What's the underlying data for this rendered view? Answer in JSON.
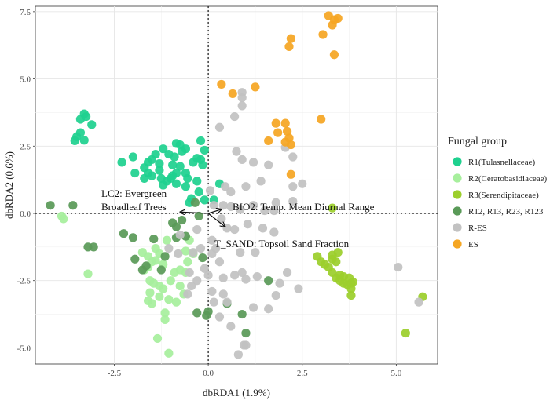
{
  "chart_data": {
    "type": "scatter",
    "title": "",
    "xlabel": "dbRDA1 (1.9%)",
    "ylabel": "dbRDA2 (0.6%)",
    "xlim": [
      -4.6,
      6.1
    ],
    "ylim": [
      -5.6,
      7.7
    ],
    "xticks": [
      -2.5,
      0.0,
      2.5,
      5.0
    ],
    "xtick_labels": [
      "-2.5",
      "0.0",
      "2.5",
      "5.0"
    ],
    "yticks": [
      -5.0,
      -2.5,
      0.0,
      2.5,
      5.0,
      7.5
    ],
    "ytick_labels": [
      "-5.0",
      "-2.5",
      "0.0",
      "2.5",
      "5.0",
      "7.5"
    ],
    "grid": true,
    "legend_position": "right",
    "legend_title": "Fungal group",
    "series": [
      {
        "name": "R1(Tulasnellaceae)",
        "color": "#1fd18f",
        "points": [
          [
            -3.3,
            3.7
          ],
          [
            -3.25,
            3.6
          ],
          [
            -3.4,
            3.5
          ],
          [
            -3.1,
            3.3
          ],
          [
            -3.4,
            3.0
          ],
          [
            -3.5,
            2.85
          ],
          [
            -3.55,
            2.7
          ],
          [
            -3.3,
            2.72
          ],
          [
            -2.3,
            1.9
          ],
          [
            -2.0,
            2.1
          ],
          [
            -1.95,
            1.5
          ],
          [
            -1.7,
            1.3
          ],
          [
            -1.7,
            1.7
          ],
          [
            -1.6,
            1.9
          ],
          [
            -1.5,
            2.0
          ],
          [
            -1.6,
            1.5
          ],
          [
            -1.5,
            1.4
          ],
          [
            -1.3,
            1.85
          ],
          [
            -1.4,
            2.2
          ],
          [
            -1.2,
            2.4
          ],
          [
            -1.05,
            2.2
          ],
          [
            -0.9,
            2.1
          ],
          [
            -0.85,
            2.6
          ],
          [
            -0.75,
            2.55
          ],
          [
            -0.7,
            2.3
          ],
          [
            -0.6,
            2.4
          ],
          [
            -1.3,
            1.6
          ],
          [
            -1.25,
            1.3
          ],
          [
            -1.2,
            1.05
          ],
          [
            -1.1,
            1.2
          ],
          [
            -0.95,
            1.4
          ],
          [
            -0.85,
            1.5
          ],
          [
            -0.85,
            1.1
          ],
          [
            -0.75,
            1.75
          ],
          [
            -0.6,
            1.5
          ],
          [
            -0.55,
            1.3
          ],
          [
            -0.6,
            1.0
          ],
          [
            -0.3,
            2.05
          ],
          [
            -0.2,
            2.0
          ],
          [
            -0.4,
            1.9
          ],
          [
            -0.3,
            1.2
          ],
          [
            -0.15,
            1.8
          ],
          [
            -0.1,
            2.35
          ],
          [
            -0.2,
            2.7
          ],
          [
            -0.25,
            0.8
          ],
          [
            -0.45,
            0.55
          ],
          [
            -0.5,
            0.4
          ],
          [
            -0.1,
            0.5
          ],
          [
            0.15,
            0.5
          ],
          [
            0.3,
            1.1
          ],
          [
            -1.0,
            1.3
          ],
          [
            -0.95,
            1.8
          ]
        ]
      },
      {
        "name": "R2(Ceratobasidiaceae)",
        "color": "#a7ef9d",
        "points": [
          [
            -3.9,
            -0.1
          ],
          [
            -3.85,
            -0.2
          ],
          [
            -3.2,
            -2.25
          ],
          [
            -1.75,
            -1.45
          ],
          [
            -1.6,
            -1.6
          ],
          [
            -1.5,
            -1.8
          ],
          [
            -1.4,
            -1.3
          ],
          [
            -1.3,
            -1.5
          ],
          [
            -1.2,
            -1.9
          ],
          [
            -1.7,
            -2.1
          ],
          [
            -1.6,
            -2.0
          ],
          [
            -1.55,
            -2.5
          ],
          [
            -1.45,
            -2.6
          ],
          [
            -1.3,
            -2.7
          ],
          [
            -1.55,
            -2.95
          ],
          [
            -1.6,
            -3.25
          ],
          [
            -1.5,
            -3.35
          ],
          [
            -1.3,
            -3.1
          ],
          [
            -1.2,
            -2.8
          ],
          [
            -1.0,
            -2.5
          ],
          [
            -0.9,
            -2.2
          ],
          [
            -1.05,
            -3.2
          ],
          [
            -1.15,
            -3.7
          ],
          [
            -1.15,
            -3.95
          ],
          [
            -1.35,
            -4.65
          ],
          [
            -1.05,
            -5.2
          ],
          [
            -0.75,
            -2.7
          ],
          [
            -0.65,
            -3.0
          ],
          [
            -0.85,
            -3.3
          ],
          [
            -0.75,
            -2.1
          ],
          [
            -0.55,
            -1.8
          ],
          [
            -0.6,
            -1.4
          ],
          [
            -0.5,
            -1.0
          ],
          [
            -0.4,
            -1.5
          ],
          [
            -0.6,
            -2.2
          ],
          [
            -1.4,
            -1.75
          ],
          [
            -1.1,
            -1.0
          ]
        ]
      },
      {
        "name": "R3(Serendipitaceae)",
        "color": "#9ccf2c",
        "points": [
          [
            3.3,
            0.2
          ],
          [
            2.9,
            -1.6
          ],
          [
            3.0,
            -1.8
          ],
          [
            3.1,
            -1.9
          ],
          [
            3.2,
            -2.0
          ],
          [
            3.3,
            -2.2
          ],
          [
            3.3,
            -1.7
          ],
          [
            3.4,
            -2.4
          ],
          [
            3.5,
            -2.5
          ],
          [
            3.6,
            -2.6
          ],
          [
            3.7,
            -2.65
          ],
          [
            3.8,
            -2.6
          ],
          [
            3.75,
            -2.4
          ],
          [
            3.6,
            -2.35
          ],
          [
            3.5,
            -2.3
          ],
          [
            3.4,
            -1.8
          ],
          [
            3.45,
            -1.45
          ],
          [
            3.8,
            -2.8
          ],
          [
            3.85,
            -2.55
          ],
          [
            3.8,
            -3.05
          ],
          [
            3.3,
            -1.55
          ],
          [
            5.25,
            -4.45
          ],
          [
            5.7,
            -3.1
          ]
        ]
      },
      {
        "name": "R12, R13, R23, R123",
        "color": "#5a9a58",
        "points": [
          [
            -4.2,
            0.3
          ],
          [
            -3.6,
            0.3
          ],
          [
            -3.2,
            -1.25
          ],
          [
            -3.05,
            -1.25
          ],
          [
            -2.25,
            -0.75
          ],
          [
            -2.0,
            -0.9
          ],
          [
            -1.95,
            -1.7
          ],
          [
            -1.75,
            -2.1
          ],
          [
            -1.65,
            -1.95
          ],
          [
            -1.45,
            -0.95
          ],
          [
            -1.15,
            -1.6
          ],
          [
            -1.25,
            -2.1
          ],
          [
            -0.95,
            -0.35
          ],
          [
            -0.85,
            -0.5
          ],
          [
            -0.7,
            -0.25
          ],
          [
            -0.85,
            -0.9
          ],
          [
            -0.6,
            -0.85
          ],
          [
            -0.25,
            -0.1
          ],
          [
            -0.15,
            -1.65
          ],
          [
            -0.3,
            -3.7
          ],
          [
            0.0,
            -3.65
          ],
          [
            -0.05,
            -3.8
          ],
          [
            0.5,
            -3.35
          ],
          [
            0.9,
            -3.75
          ],
          [
            1.0,
            -4.45
          ],
          [
            1.6,
            -2.5
          ],
          [
            -0.35,
            0.4
          ]
        ]
      },
      {
        "name": "R-ES",
        "color": "#c2c2c2",
        "points": [
          [
            0.9,
            4.5
          ],
          [
            0.9,
            4.3
          ],
          [
            0.9,
            4.0
          ],
          [
            0.7,
            3.6
          ],
          [
            0.3,
            3.2
          ],
          [
            0.75,
            2.3
          ],
          [
            0.9,
            2.0
          ],
          [
            1.2,
            1.9
          ],
          [
            1.6,
            1.8
          ],
          [
            0.45,
            1.0
          ],
          [
            0.6,
            0.8
          ],
          [
            1.0,
            1.0
          ],
          [
            1.4,
            1.2
          ],
          [
            1.8,
            0.4
          ],
          [
            2.25,
            0.45
          ],
          [
            2.25,
            1.0
          ],
          [
            2.5,
            1.1
          ],
          [
            0.4,
            0.3
          ],
          [
            0.6,
            0.25
          ],
          [
            0.85,
            0.15
          ],
          [
            1.2,
            0.3
          ],
          [
            1.5,
            0.1
          ],
          [
            1.75,
            0.1
          ],
          [
            0.35,
            -0.2
          ],
          [
            0.5,
            -0.55
          ],
          [
            0.7,
            -0.6
          ],
          [
            1.05,
            -0.4
          ],
          [
            1.45,
            -0.55
          ],
          [
            1.75,
            -0.7
          ],
          [
            0.85,
            -1.45
          ],
          [
            1.25,
            -1.45
          ],
          [
            0.1,
            -1.5
          ],
          [
            0.1,
            -1.0
          ],
          [
            0.3,
            -1.8
          ],
          [
            0.4,
            -2.4
          ],
          [
            0.7,
            -2.3
          ],
          [
            0.9,
            -2.2
          ],
          [
            1.0,
            -2.45
          ],
          [
            1.3,
            -2.35
          ],
          [
            0.4,
            -3.0
          ],
          [
            0.5,
            -3.3
          ],
          [
            0.3,
            -3.85
          ],
          [
            0.6,
            -4.2
          ],
          [
            1.0,
            -4.9
          ],
          [
            0.8,
            -5.25
          ],
          [
            0.95,
            -4.9
          ],
          [
            1.2,
            -3.5
          ],
          [
            1.6,
            -3.55
          ],
          [
            1.8,
            -3.05
          ],
          [
            1.9,
            -2.6
          ],
          [
            2.1,
            -2.2
          ],
          [
            0.1,
            -2.9
          ],
          [
            0.15,
            -3.3
          ],
          [
            -0.2,
            -1.3
          ],
          [
            -0.3,
            -0.6
          ],
          [
            -0.4,
            -1.45
          ],
          [
            -0.1,
            -2.05
          ],
          [
            -0.3,
            -2.5
          ],
          [
            -0.5,
            -2.2
          ],
          [
            -0.55,
            -3.0
          ],
          [
            -0.8,
            -1.5
          ],
          [
            -0.75,
            -0.8
          ],
          [
            -1.05,
            -1.3
          ],
          [
            -0.45,
            -2.7
          ],
          [
            0.2,
            -1.3
          ],
          [
            0.15,
            0.3
          ],
          [
            0.05,
            0.85
          ],
          [
            0.0,
            -2.3
          ],
          [
            2.05,
            2.45
          ],
          [
            2.25,
            2.1
          ],
          [
            5.05,
            -2.0
          ],
          [
            5.6,
            -3.3
          ],
          [
            2.4,
            -2.8
          ]
        ]
      },
      {
        "name": "ES",
        "color": "#f5a623",
        "points": [
          [
            3.2,
            7.35
          ],
          [
            3.3,
            7.0
          ],
          [
            3.35,
            7.2
          ],
          [
            3.45,
            7.25
          ],
          [
            3.05,
            6.65
          ],
          [
            2.2,
            6.5
          ],
          [
            2.15,
            6.2
          ],
          [
            3.35,
            5.9
          ],
          [
            0.35,
            4.8
          ],
          [
            0.65,
            4.45
          ],
          [
            1.25,
            4.7
          ],
          [
            1.8,
            3.35
          ],
          [
            1.85,
            3.0
          ],
          [
            2.05,
            3.35
          ],
          [
            2.1,
            3.05
          ],
          [
            2.15,
            2.8
          ],
          [
            2.2,
            2.55
          ],
          [
            2.05,
            2.65
          ],
          [
            1.6,
            2.7
          ],
          [
            2.2,
            1.45
          ],
          [
            3.0,
            3.5
          ]
        ]
      }
    ],
    "vectors": [
      {
        "label": "LC2: Evergreen Broadleaf Trees",
        "label_lines": [
          "LC2: Evergreen",
          "Broadleaf Trees"
        ],
        "end": [
          -0.75,
          0.05
        ]
      },
      {
        "label": "BIO2: Temp. Mean Diurnal Range",
        "end": [
          0.35,
          0.15
        ]
      },
      {
        "label": "T_SAND: Topsoil Sand Fraction",
        "end": [
          0.45,
          -0.5
        ]
      }
    ]
  }
}
